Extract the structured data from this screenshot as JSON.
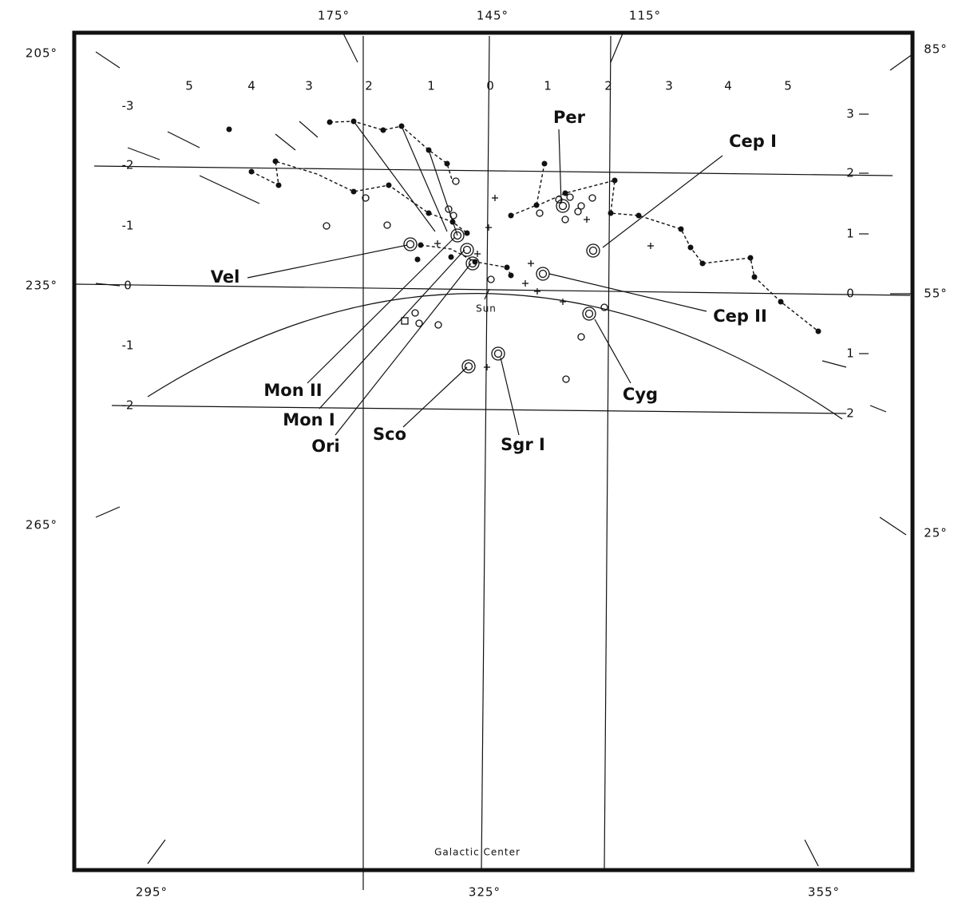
{
  "edge_labels": {
    "top": [
      "175°",
      "145°",
      "115°"
    ],
    "left": [
      "205°",
      "235°",
      "265°"
    ],
    "right": [
      "85°",
      "55°",
      "25°"
    ],
    "bottom": [
      "295°",
      "325°",
      "355°"
    ]
  },
  "top_scale": [
    "5",
    "4",
    "3",
    "2",
    "1",
    "0",
    "1",
    "2",
    "3",
    "4",
    "5"
  ],
  "left_scale": [
    "-3",
    "-2",
    "-1",
    "0",
    "-1",
    "-2"
  ],
  "right_scale": [
    "3",
    "2",
    "1",
    "0",
    "1",
    "2"
  ],
  "regions": [
    "Per",
    "Cep I",
    "Vel",
    "Cep II",
    "Mon II",
    "Mon I",
    "Ori",
    "Sco",
    "Sgr I",
    "Cyg"
  ],
  "sun": "Sun",
  "center": "Galactic Center"
}
